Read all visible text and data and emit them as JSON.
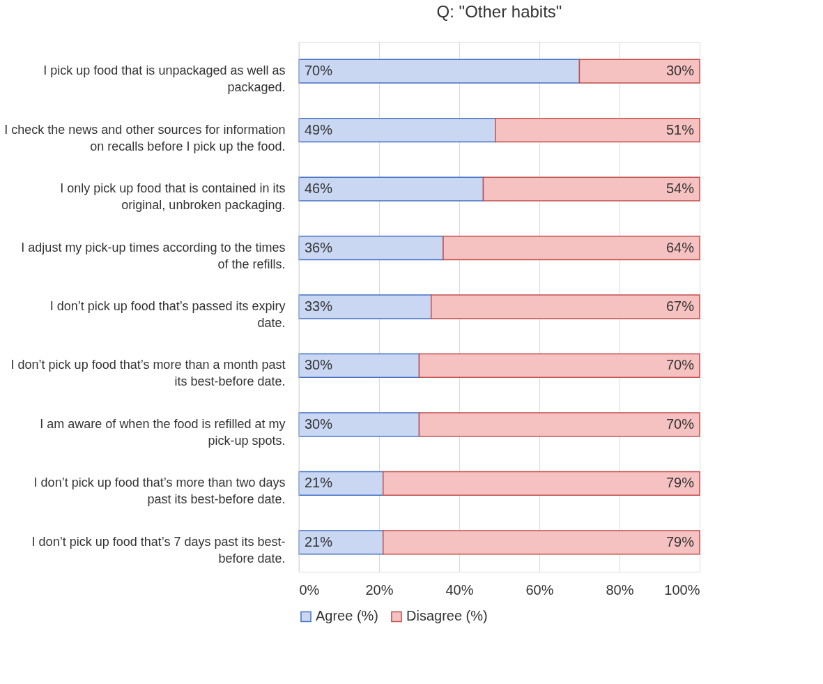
{
  "chart_data": {
    "type": "bar",
    "orientation": "horizontal",
    "stacked": true,
    "title": "Q: \"Other habits\"",
    "categories": [
      "I pick up food that is unpackaged as well as packaged.",
      "I check the news and other sources for information on recalls before I pick up the food.",
      "I only pick up food that is contained in its original, unbroken packaging.",
      "I adjust my pick-up times according to the times of the refills.",
      "I don’t pick up food that’s passed its expiry date.",
      "I don’t pick up food that’s more than a month past its best-before date.",
      "I am aware of when the food is refilled at my pick-up spots.",
      "I don’t pick up food that’s more than two days past its best-before date.",
      "I don’t pick up food that’s 7 days past its best-before date."
    ],
    "series": [
      {
        "name": "Agree (%)",
        "color": "#c9d7f3",
        "values": [
          70,
          49,
          46,
          36,
          33,
          30,
          30,
          21,
          21
        ]
      },
      {
        "name": "Disagree (%)",
        "color": "#f6c1c1",
        "values": [
          30,
          51,
          54,
          64,
          67,
          70,
          70,
          79,
          79
        ]
      }
    ],
    "xlim": [
      0,
      100
    ],
    "xticks": [
      {
        "value": 0,
        "label": "0%"
      },
      {
        "value": 20,
        "label": "20%"
      },
      {
        "value": 40,
        "label": "40%"
      },
      {
        "value": 60,
        "label": "60%"
      },
      {
        "value": 80,
        "label": "80%"
      },
      {
        "value": 100,
        "label": "100%"
      }
    ],
    "value_labels": [
      [
        "70%",
        "49%",
        "46%",
        "36%",
        "33%",
        "30%",
        "30%",
        "21%",
        "21%"
      ],
      [
        "30%",
        "51%",
        "54%",
        "64%",
        "67%",
        "70%",
        "70%",
        "79%",
        "79%"
      ]
    ],
    "grid": "x",
    "legend": "bottom"
  }
}
